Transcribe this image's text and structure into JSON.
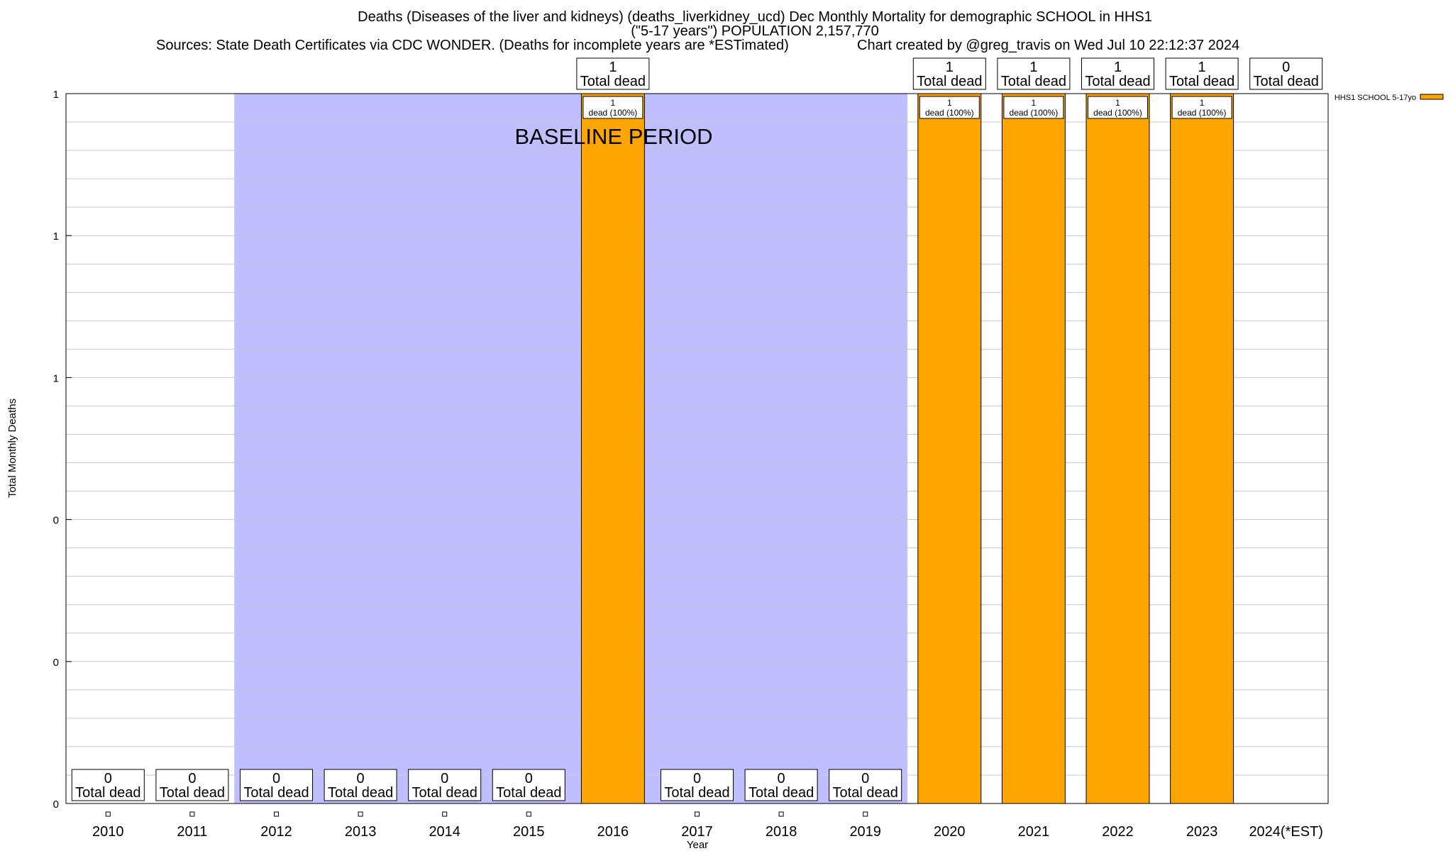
{
  "chart_data": {
    "type": "bar",
    "title_lines": [
      "Deaths (Diseases of the liver and kidneys) (deaths_liverkidney_ucd) Dec Monthly Mortality for demographic SCHOOL in HHS1",
      "(\"5-17 years\") POPULATION 2,157,770",
      "Sources: State Death Certificates via CDC WONDER. (Deaths for incomplete years are *ESTimated)",
      "Chart created by @greg_travis on Wed Jul 10 22:12:37 2024"
    ],
    "xlabel": "Year",
    "ylabel": "Total Monthly Deaths",
    "categories": [
      "2010",
      "2011",
      "2012",
      "2013",
      "2014",
      "2015",
      "2016",
      "2017",
      "2018",
      "2019",
      "2020",
      "2021",
      "2022",
      "2023",
      "2024(*EST)"
    ],
    "ylim": [
      0,
      1
    ],
    "ytick_labels": [
      "0",
      "0",
      "0",
      "1",
      "1",
      "1"
    ],
    "series": [
      {
        "name": "HHS1 SCHOOL 5-17yo",
        "color": "#ffa500",
        "values": [
          0,
          0,
          0,
          0,
          0,
          0,
          1,
          0,
          0,
          0,
          1,
          1,
          1,
          1,
          0
        ]
      }
    ],
    "total_labels": [
      "Total dead",
      "Total dead",
      "Total dead",
      "Total dead",
      "Total dead",
      "Total dead",
      "Total dead",
      "Total dead",
      "Total dead",
      "Total dead",
      "Total dead",
      "Total dead",
      "Total dead",
      "Total dead",
      "Total dead"
    ],
    "bar_inner_label": "dead (100%)",
    "baseline": {
      "label": "BASELINE PERIOD",
      "start": "2012",
      "end": "2019",
      "color": "#bfbfff"
    },
    "grid": true,
    "legend_position": "top-right"
  }
}
